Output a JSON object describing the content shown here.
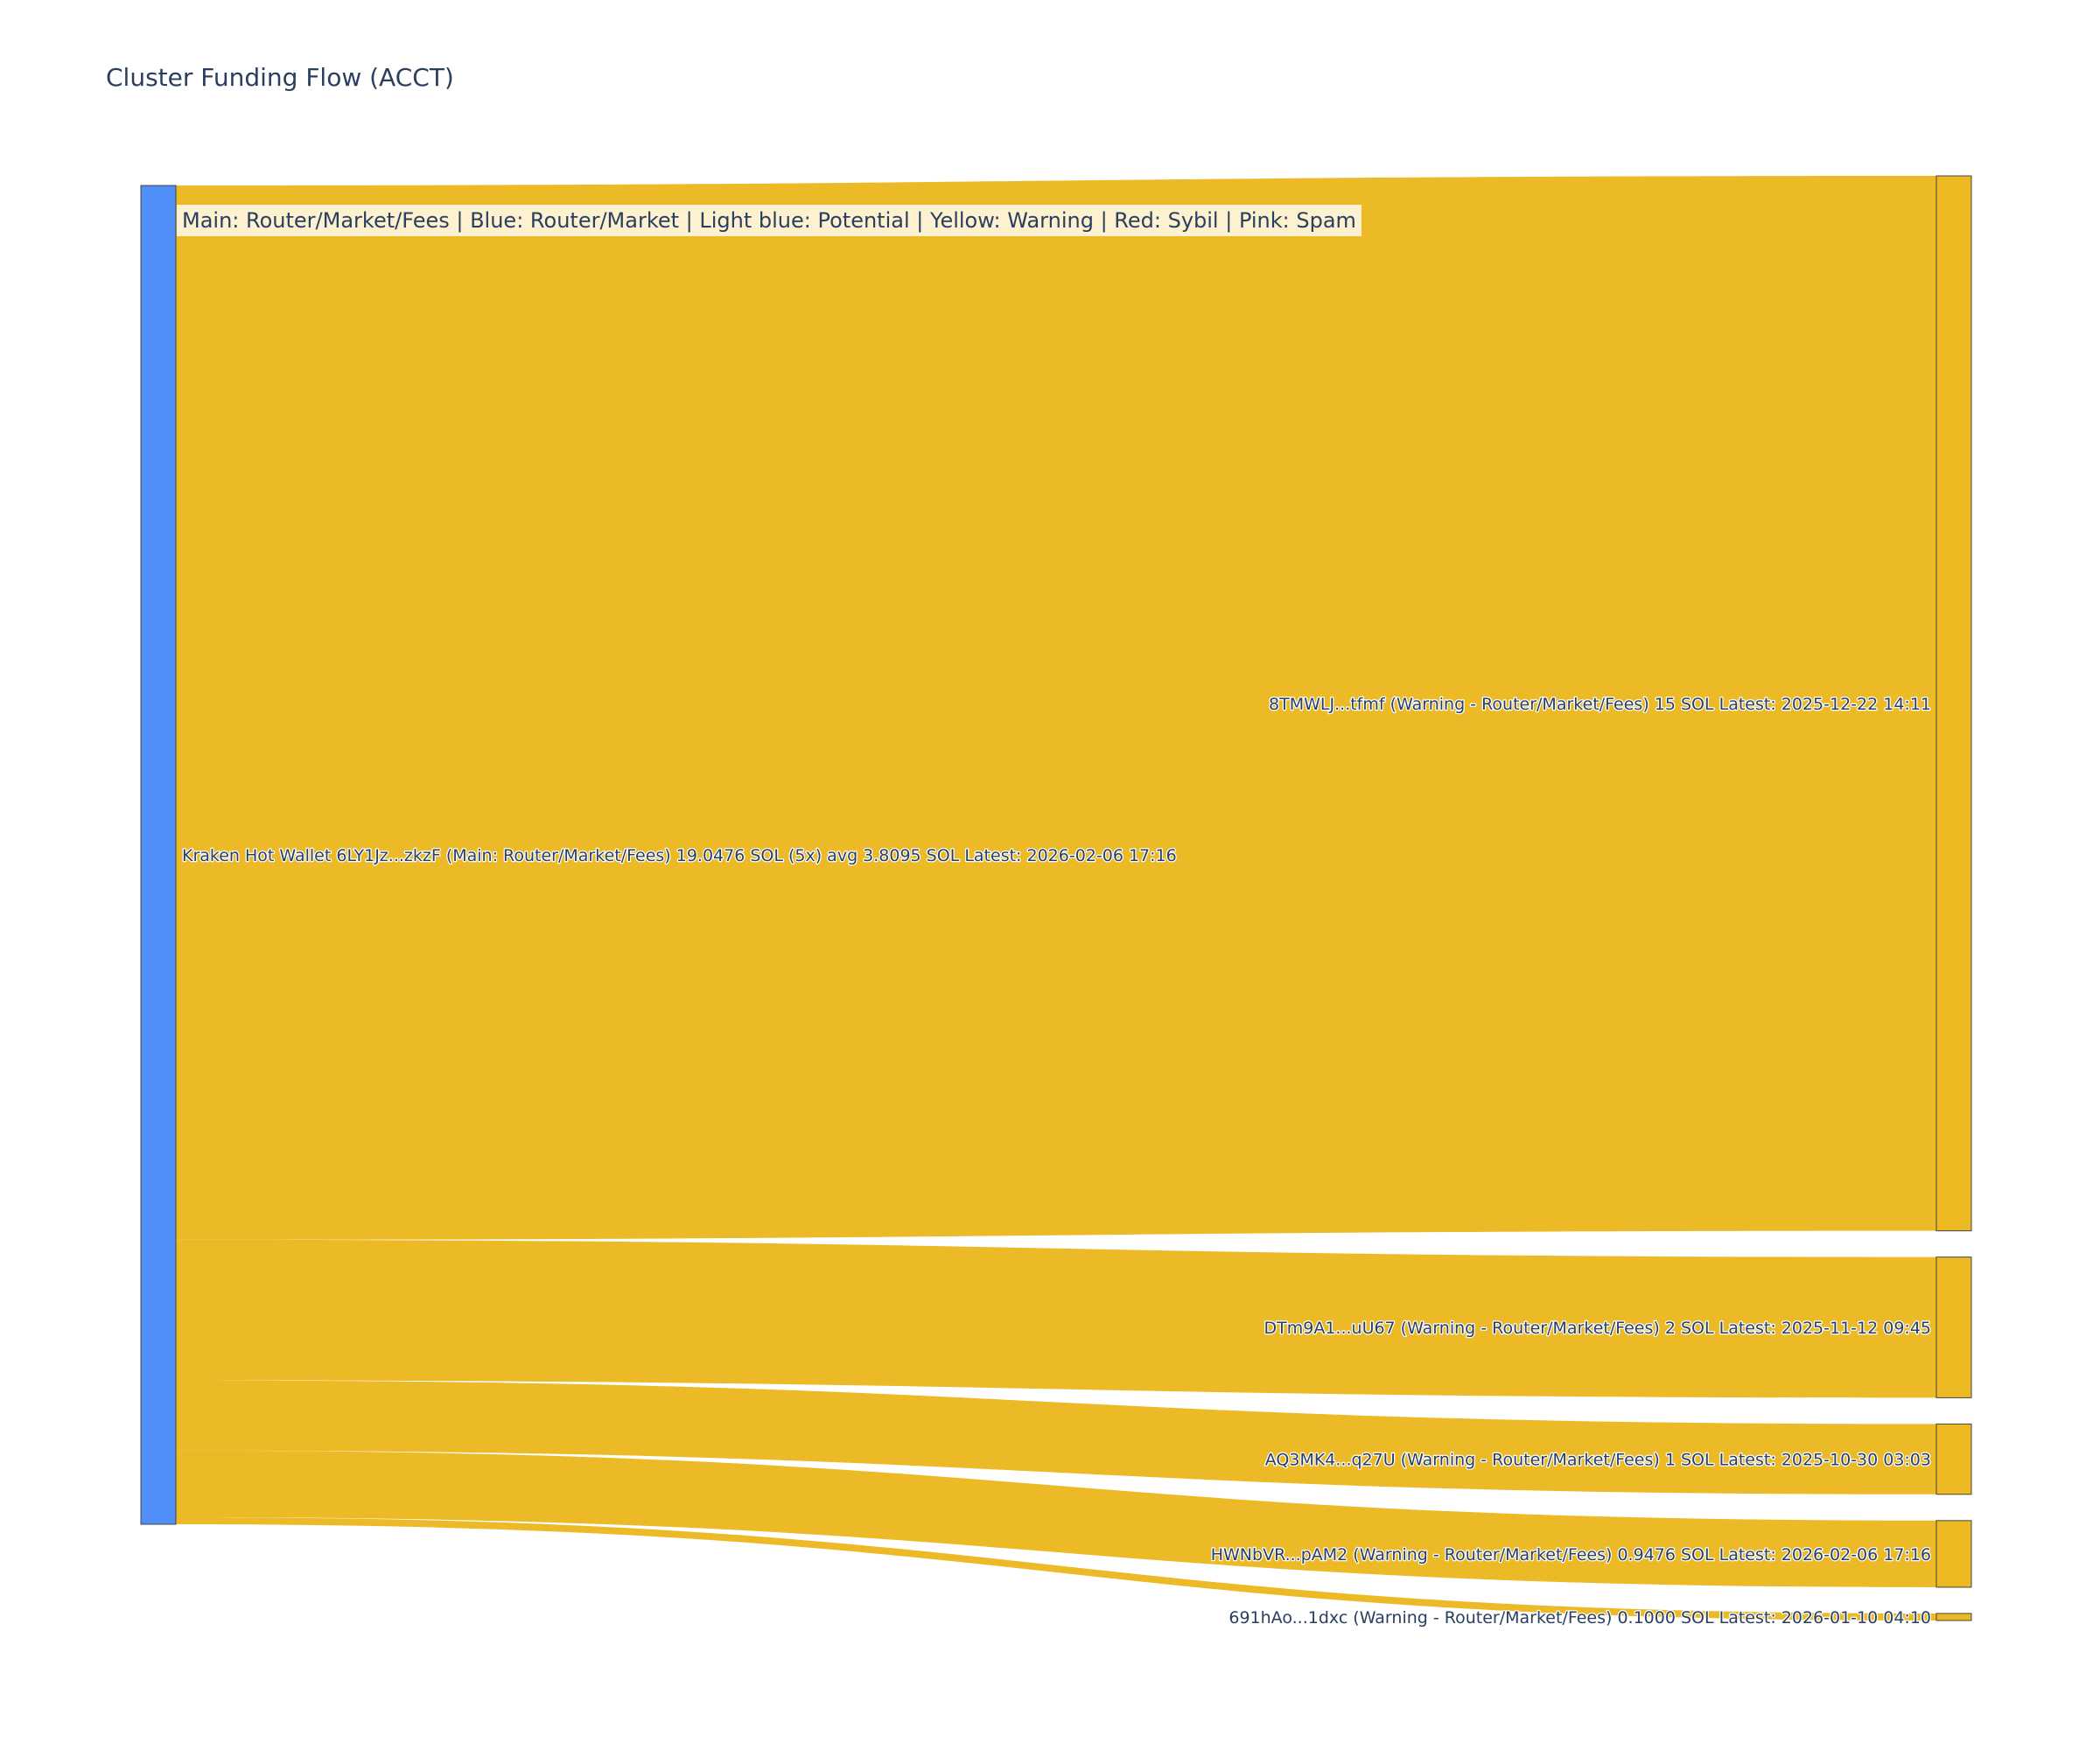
{
  "chart_data": {
    "type": "sankey",
    "title": "Cluster Funding Flow (ACCT)",
    "annotation": "Main: Router/Market/Fees  |  Blue: Router/Market | Light blue: Potential | Yellow: Warning | Red: Sybil | Pink: Spam",
    "unit": "SOL",
    "colors": {
      "source_node": "#4f8ff7",
      "target_node": "#ecb923",
      "link": "#ecb923",
      "node_border": "#444444"
    },
    "source": {
      "label": "Kraken Hot Wallet 6LY1Jz...zkzF (Main: Router/Market/Fees) 19.0476 SOL (5x) avg 3.8095 SOL Latest: 2026-02-06 17:16",
      "value": 19.0476
    },
    "targets": [
      {
        "label": "8TMWLJ...tfmf (Warning - Router/Market/Fees) 15 SOL Latest: 2025-12-22 14:11",
        "value": 15
      },
      {
        "label": "DTm9A1...uU67 (Warning - Router/Market/Fees) 2 SOL Latest: 2025-11-12 09:45",
        "value": 2
      },
      {
        "label": "AQ3MK4...q27U (Warning - Router/Market/Fees) 1 SOL Latest: 2025-10-30 03:03",
        "value": 1
      },
      {
        "label": "HWNbVR...pAM2 (Warning - Router/Market/Fees) 0.9476 SOL Latest: 2026-02-06 17:16",
        "value": 0.9476
      },
      {
        "label": "691hAo...1dxc (Warning - Router/Market/Fees) 0.1000 SOL Latest: 2026-01-10 04:10",
        "value": 0.1
      }
    ]
  }
}
